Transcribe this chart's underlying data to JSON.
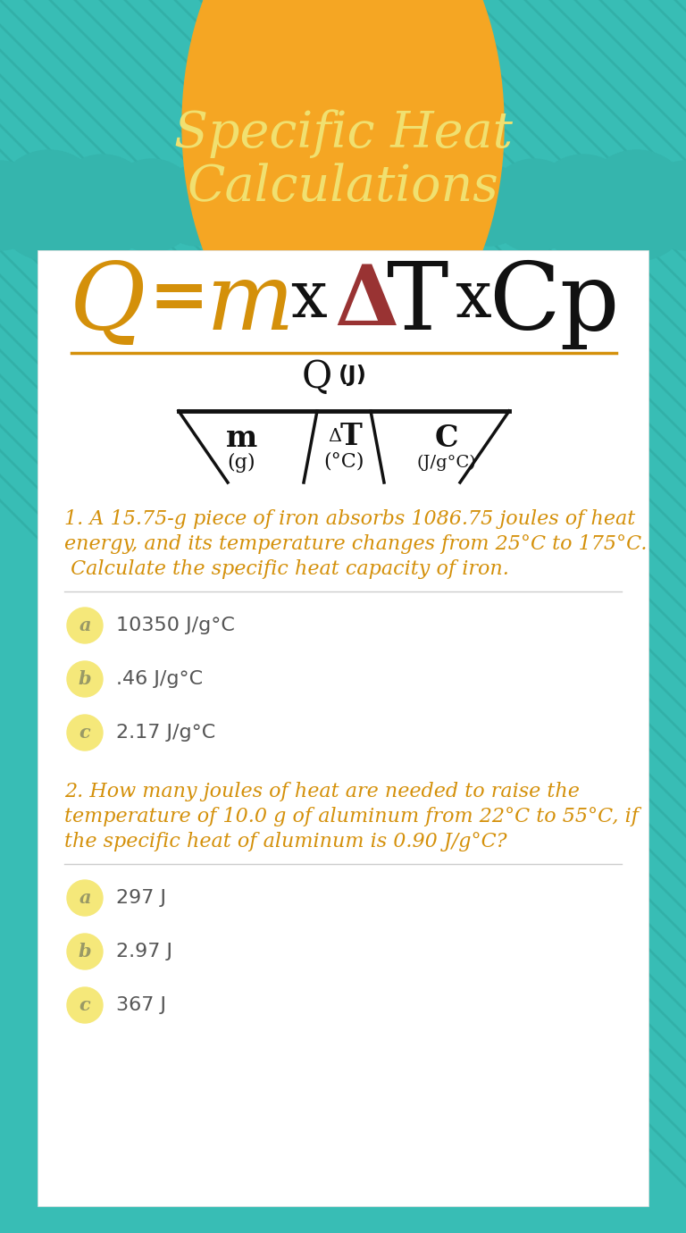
{
  "title_line1": "Specific Heat",
  "title_line2": "Calculations",
  "title_color": "#F0E070",
  "title_bg_color": "#F5A623",
  "bg_color": "#38BDB5",
  "stripe_color": "#2EA8A0",
  "cloud_color": "#35B5AD",
  "card_color": "#FFFFFF",
  "formula_Q_color": "#D4900A",
  "formula_m_color": "#D4900A",
  "formula_delta_color": "#993333",
  "formula_T_color": "#111111",
  "formula_x_color": "#111111",
  "formula_Cp_color": "#111111",
  "separator_color": "#D4900A",
  "q1_text_line1": "1. A 15.75-g piece of iron absorbs 1086.75 joules of heat",
  "q1_text_line2": "energy, and its temperature changes from 25°C to 175°C.",
  "q1_text_line3": " Calculate the specific heat capacity of iron.",
  "q_color": "#D4900A",
  "q1_options": [
    "10350 J/g°C",
    ".46 J/g°C",
    "2.17 J/g°C"
  ],
  "q2_text_line1": "2. How many joules of heat are needed to raise the",
  "q2_text_line2": "temperature of 10.0 g of aluminum from 22°C to 55°C, if",
  "q2_text_line3": "the specific heat of aluminum is 0.90 J/g°C?",
  "q2_options": [
    "297 J",
    "2.97 J",
    "367 J"
  ],
  "option_labels": [
    "a",
    "b",
    "c"
  ],
  "option_circle_color": "#F5E87A",
  "option_text_color": "#555555",
  "option_label_color": "#999966",
  "diagram_color": "#111111",
  "sep_line_color": "#CCCCCC"
}
